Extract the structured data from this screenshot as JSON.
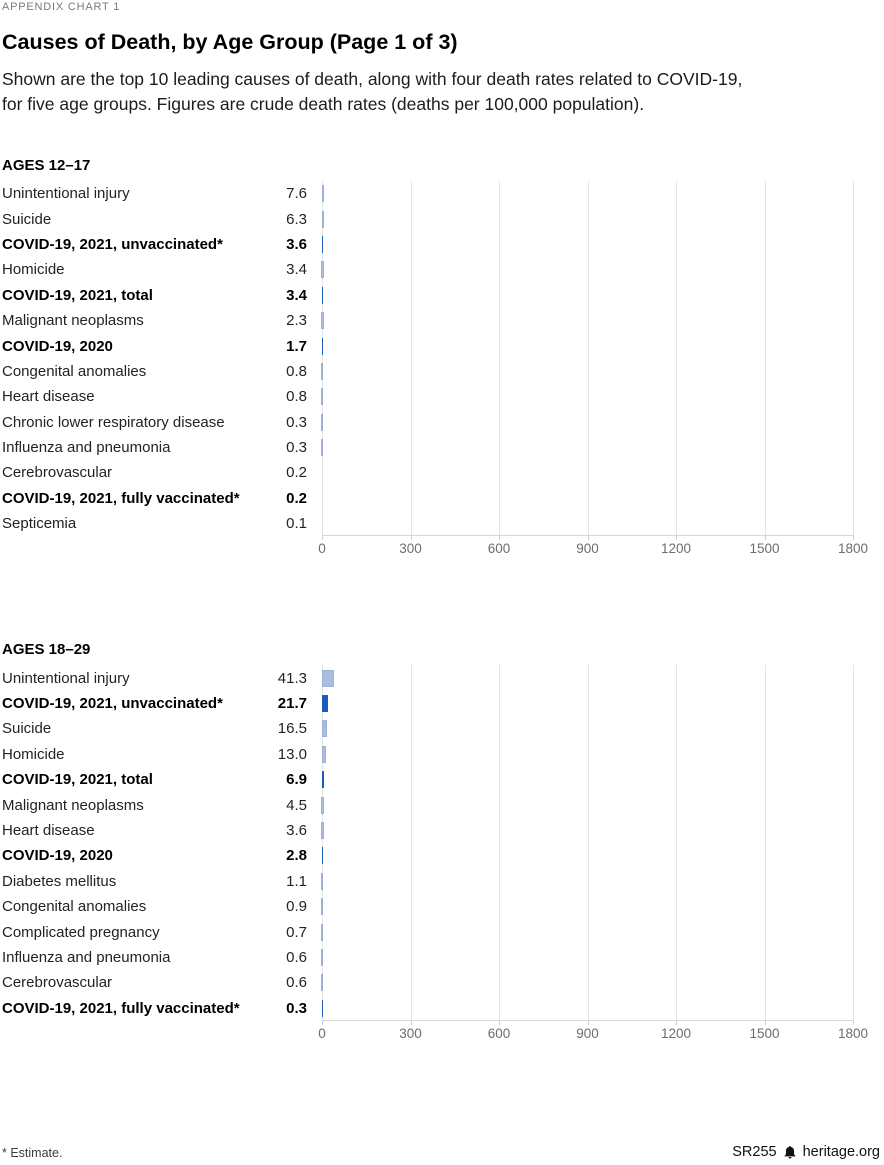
{
  "page": {
    "kicker": "APPENDIX CHART 1",
    "title": "Causes of Death, by Age Group (Page 1 of 3)",
    "subtitle_line1": "Shown are the top 10 leading causes of death, along with four death rates related to COVID-19,",
    "subtitle_line2": "for five age groups. Figures are crude death rates (deaths per 100,000 population).",
    "footnote": "* Estimate.",
    "report_id": "SR255",
    "site": "heritage.org"
  },
  "colors": {
    "bar_light": "#abbddf",
    "bar_light_border": "#9db1d9",
    "bar_dark": "#1a5dbe",
    "grid": "#e4e4e4",
    "axis_line": "#d8d8d8",
    "tick_label": "#6d6d6d"
  },
  "chart_data": [
    {
      "type": "bar",
      "orientation": "horizontal",
      "title": "AGES 12–17",
      "xlabel": "",
      "ylabel": "",
      "xlim": [
        0,
        1800
      ],
      "xticks": [
        0,
        300,
        600,
        900,
        1200,
        1500,
        1800
      ],
      "grid": true,
      "legend": "none",
      "rows": [
        {
          "label": "Unintentional injury",
          "value": 7.6,
          "bold": false
        },
        {
          "label": "Suicide",
          "value": 6.3,
          "bold": false
        },
        {
          "label": "COVID-19, 2021, unvaccinated*",
          "value": 3.6,
          "bold": true
        },
        {
          "label": "Homicide",
          "value": 3.4,
          "bold": false
        },
        {
          "label": "COVID-19, 2021, total",
          "value": 3.4,
          "bold": true
        },
        {
          "label": "Malignant neoplasms",
          "value": 2.3,
          "bold": false
        },
        {
          "label": "COVID-19, 2020",
          "value": 1.7,
          "bold": true
        },
        {
          "label": "Congenital anomalies",
          "value": 0.8,
          "bold": false
        },
        {
          "label": "Heart disease",
          "value": 0.8,
          "bold": false
        },
        {
          "label": "Chronic lower respiratory disease",
          "value": 0.3,
          "bold": false
        },
        {
          "label": "Influenza and pneumonia",
          "value": 0.3,
          "bold": false
        },
        {
          "label": "Cerebrovascular",
          "value": 0.2,
          "bold": false
        },
        {
          "label": "COVID-19, 2021, fully vaccinated*",
          "value": 0.2,
          "bold": true
        },
        {
          "label": "Septicemia",
          "value": 0.1,
          "bold": false
        }
      ]
    },
    {
      "type": "bar",
      "orientation": "horizontal",
      "title": "AGES 18–29",
      "xlabel": "",
      "ylabel": "",
      "xlim": [
        0,
        1800
      ],
      "xticks": [
        0,
        300,
        600,
        900,
        1200,
        1500,
        1800
      ],
      "grid": true,
      "legend": "none",
      "rows": [
        {
          "label": "Unintentional injury",
          "value": 41.3,
          "bold": false
        },
        {
          "label": "COVID-19, 2021, unvaccinated*",
          "value": 21.7,
          "bold": true
        },
        {
          "label": "Suicide",
          "value": 16.5,
          "bold": false
        },
        {
          "label": "Homicide",
          "value": 13.0,
          "bold": false
        },
        {
          "label": "COVID-19, 2021, total",
          "value": 6.9,
          "bold": true
        },
        {
          "label": "Malignant neoplasms",
          "value": 4.5,
          "bold": false
        },
        {
          "label": "Heart disease",
          "value": 3.6,
          "bold": false
        },
        {
          "label": "COVID-19, 2020",
          "value": 2.8,
          "bold": true
        },
        {
          "label": "Diabetes mellitus",
          "value": 1.1,
          "bold": false
        },
        {
          "label": "Congenital anomalies",
          "value": 0.9,
          "bold": false
        },
        {
          "label": "Complicated pregnancy",
          "value": 0.7,
          "bold": false
        },
        {
          "label": "Influenza and pneumonia",
          "value": 0.6,
          "bold": false
        },
        {
          "label": "Cerebrovascular",
          "value": 0.6,
          "bold": false
        },
        {
          "label": "COVID-19, 2021, fully vaccinated*",
          "value": 0.3,
          "bold": true
        }
      ]
    }
  ]
}
